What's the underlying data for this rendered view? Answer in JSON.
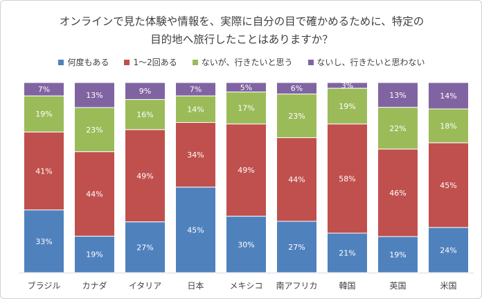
{
  "chart_data": {
    "type": "bar",
    "stacked": true,
    "title": "オンラインで見た体験や情報を、実際に自分の目で確かめるために、特定の目的地へ旅行したことはありますか？",
    "title_lines": [
      "オンラインで見た体験や情報を、実際に自分の目で確かめるために、特定の",
      "目的地へ旅行したことはありますか？"
    ],
    "categories": [
      "ブラジル",
      "カナダ",
      "イタリア",
      "日本",
      "メキシコ",
      "南アフリカ",
      "韓国",
      "英国",
      "米国"
    ],
    "series": [
      {
        "name": "何度もある",
        "color": "#4f81bd",
        "values": [
          33,
          19,
          27,
          45,
          30,
          27,
          21,
          19,
          24
        ]
      },
      {
        "name": "1～2回ある",
        "color": "#c0504d",
        "values": [
          41,
          44,
          49,
          34,
          49,
          44,
          58,
          46,
          45
        ]
      },
      {
        "name": "ないが、行きたいと思う",
        "color": "#9bbb59",
        "values": [
          19,
          23,
          16,
          14,
          17,
          23,
          19,
          22,
          18
        ]
      },
      {
        "name": "ないし、行きたいと思わない",
        "color": "#8064a2",
        "values": [
          7,
          13,
          9,
          7,
          5,
          6,
          3,
          13,
          14
        ]
      }
    ],
    "value_format": "percent",
    "ylim": [
      0,
      100
    ],
    "legend": "top",
    "grid": false
  }
}
